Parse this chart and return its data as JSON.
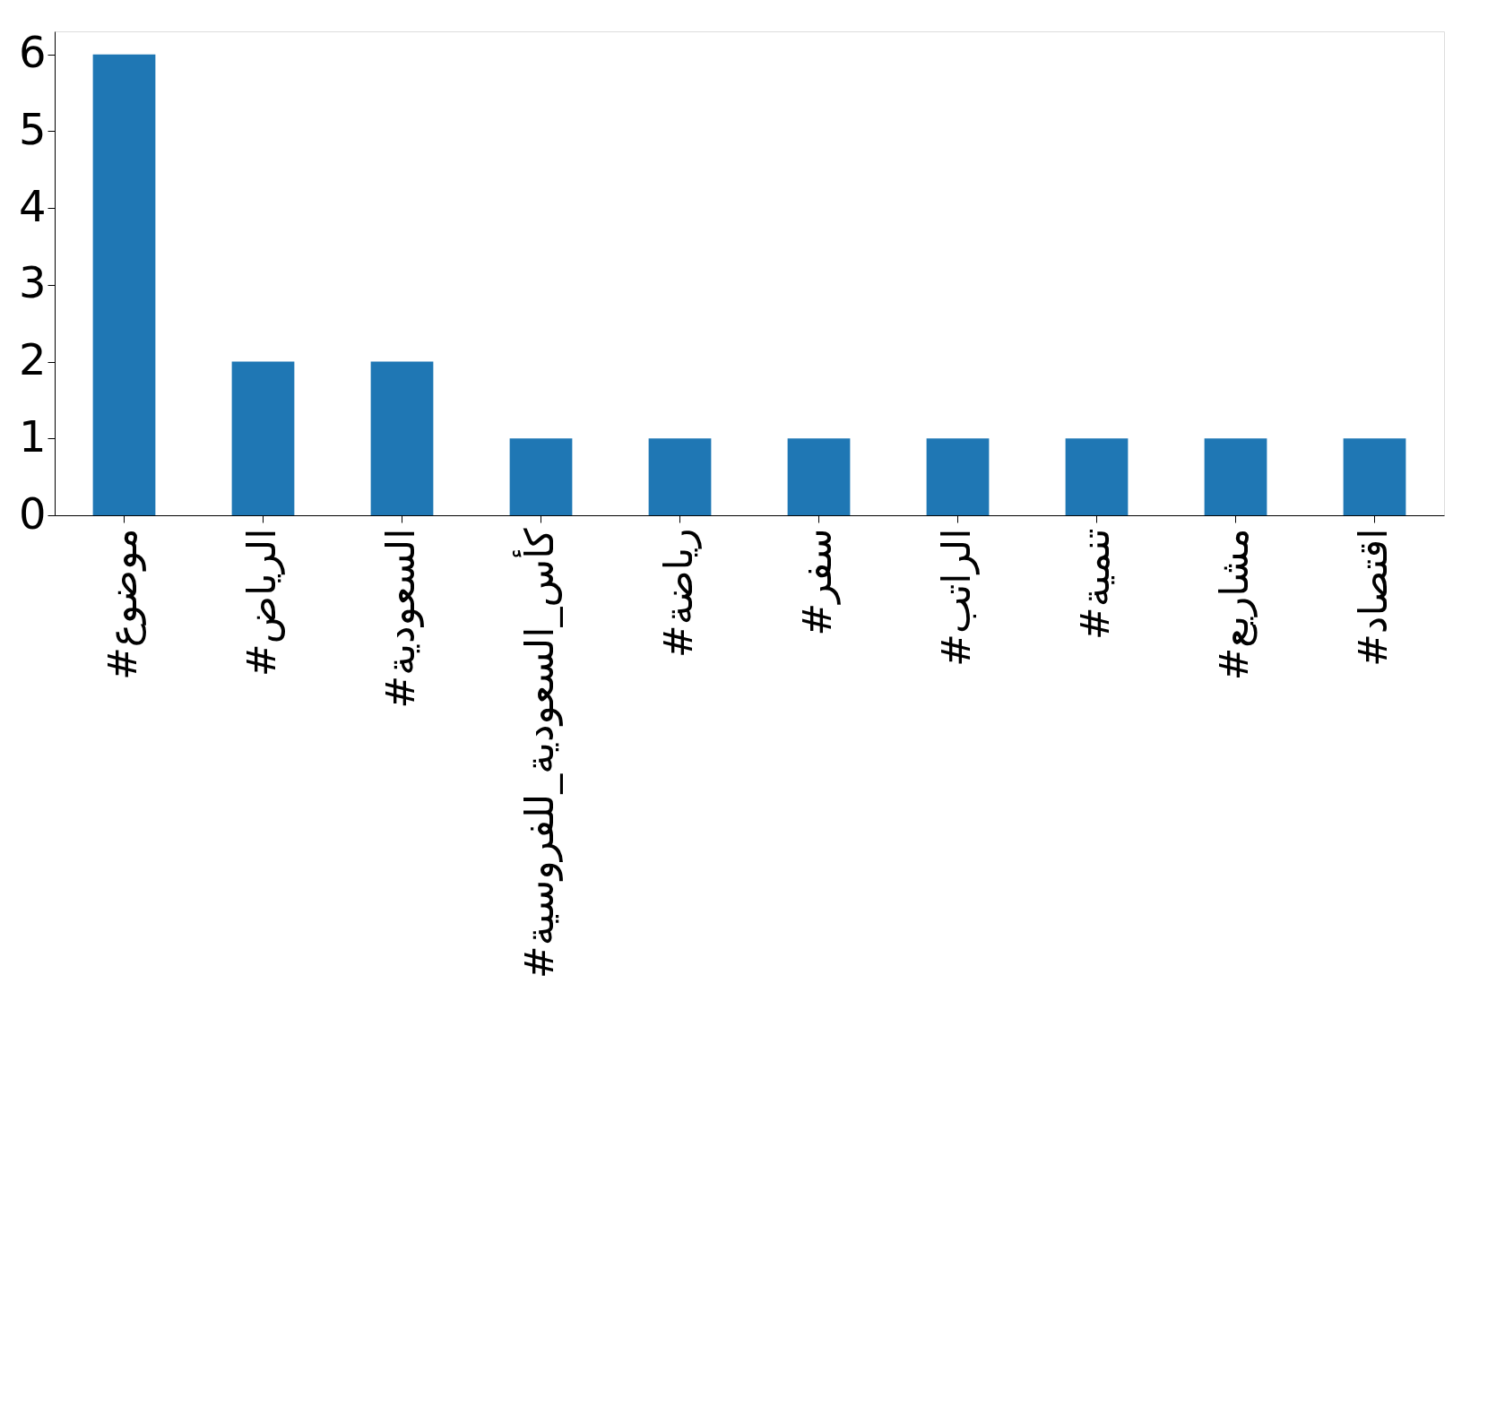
{
  "chart_data": {
    "type": "bar",
    "categories": [
      "#موضوع",
      "#الرياض",
      "#السعودية",
      "#كأس_السعودية_للفروسية",
      "#رياضة",
      "#سفر",
      "#الراتب",
      "#تنمية",
      "#مشاريع",
      "#اقتصاد"
    ],
    "values": [
      6,
      2,
      2,
      1,
      1,
      1,
      1,
      1,
      1,
      1
    ],
    "color": "#1f77b4",
    "ylim": [
      0,
      6.3
    ],
    "yticks": [
      0,
      1,
      2,
      3,
      4,
      5,
      6
    ],
    "grid": false
  }
}
